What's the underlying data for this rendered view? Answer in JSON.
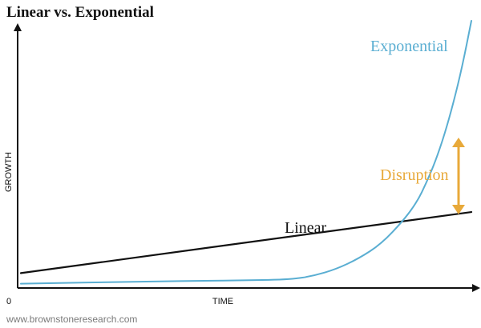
{
  "chart_data": {
    "type": "line",
    "title": "Linear vs. Exponential",
    "xlabel": "TIME",
    "ylabel": "GROWTH",
    "origin_label": "0",
    "xlim": [
      0,
      100
    ],
    "ylim": [
      0,
      100
    ],
    "grid": false,
    "series": [
      {
        "name": "Linear",
        "color": "#111111",
        "x": [
          0,
          100
        ],
        "y": [
          5,
          28
        ]
      },
      {
        "name": "Exponential",
        "color": "#5aaed2",
        "x": [
          0,
          10,
          20,
          30,
          40,
          50,
          60,
          65,
          70,
          75,
          80,
          85,
          88,
          90,
          92,
          94,
          96,
          98,
          100
        ],
        "y": [
          1,
          1.3,
          1.6,
          1.9,
          2.1,
          2.3,
          2.6,
          4,
          6.5,
          10.5,
          16,
          25,
          32,
          39,
          47,
          57,
          69,
          83,
          100
        ]
      }
    ],
    "annotations": [
      {
        "text": "Disruption",
        "color": "#e8a93a",
        "arrow": "double-vertical"
      }
    ]
  },
  "footer": {
    "source": "www.brownstoneresearch.com"
  }
}
